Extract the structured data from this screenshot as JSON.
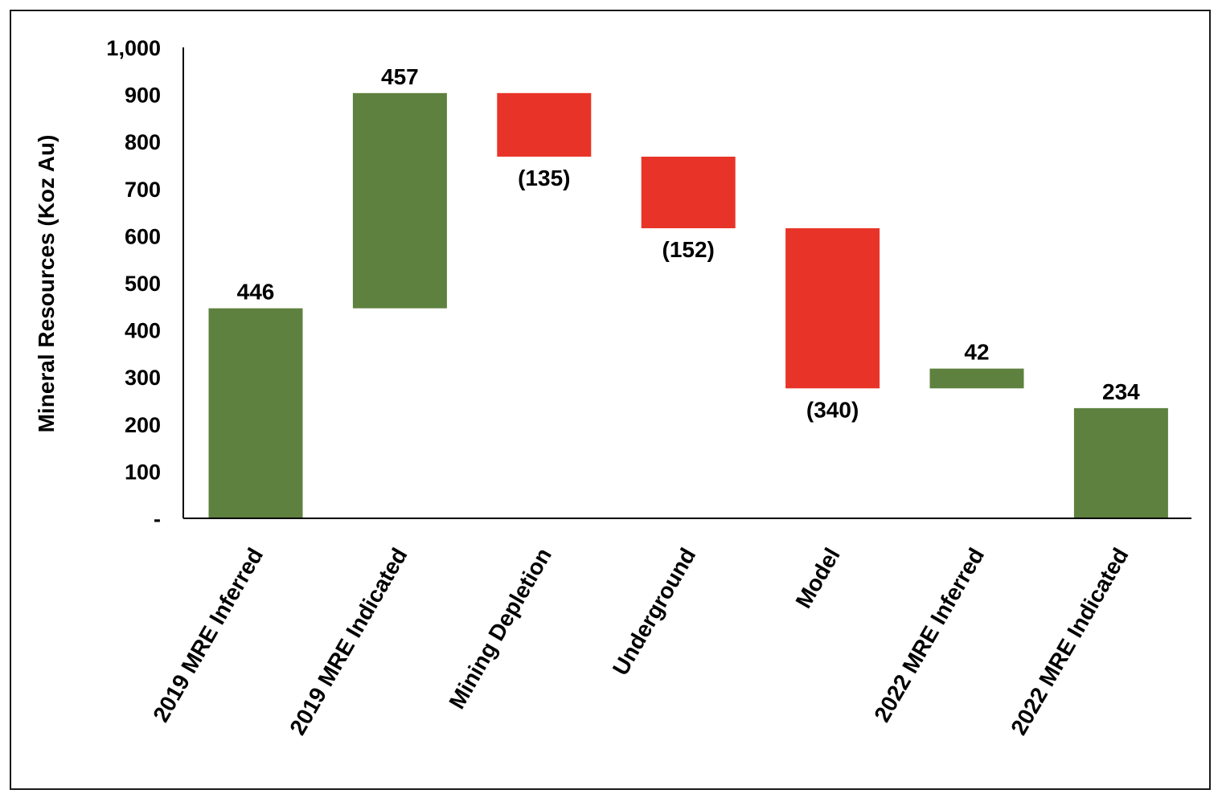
{
  "chart_data": {
    "type": "bar",
    "subtype": "waterfall",
    "title": "",
    "xlabel": "",
    "ylabel": "Mineral Resources (Koz Au)",
    "ylim": [
      0,
      1000
    ],
    "yticks": [
      0,
      100,
      200,
      300,
      400,
      500,
      600,
      700,
      800,
      900,
      1000
    ],
    "ytick_labels": [
      "-",
      "100",
      "200",
      "300",
      "400",
      "500",
      "600",
      "700",
      "800",
      "900",
      "1,000"
    ],
    "grid": false,
    "legend": "none",
    "categories": [
      "2019 MRE Inferred",
      "2019 MRE Indicated",
      "Mining Depletion",
      "Underground",
      "Model",
      "2022 MRE Inferred",
      "2022 MRE Indicated"
    ],
    "values": [
      446,
      457,
      -135,
      -152,
      -340,
      42,
      234
    ],
    "bar_start": [
      0,
      446,
      903,
      768,
      616,
      276,
      0
    ],
    "bar_end": [
      446,
      903,
      768,
      616,
      276,
      318,
      234
    ],
    "data_labels": [
      "446",
      "457",
      "(135)",
      "(152)",
      "(340)",
      "42",
      "234"
    ],
    "colors": {
      "increase": "#5f813f",
      "decrease": "#e83428",
      "axis": "#000000"
    }
  }
}
